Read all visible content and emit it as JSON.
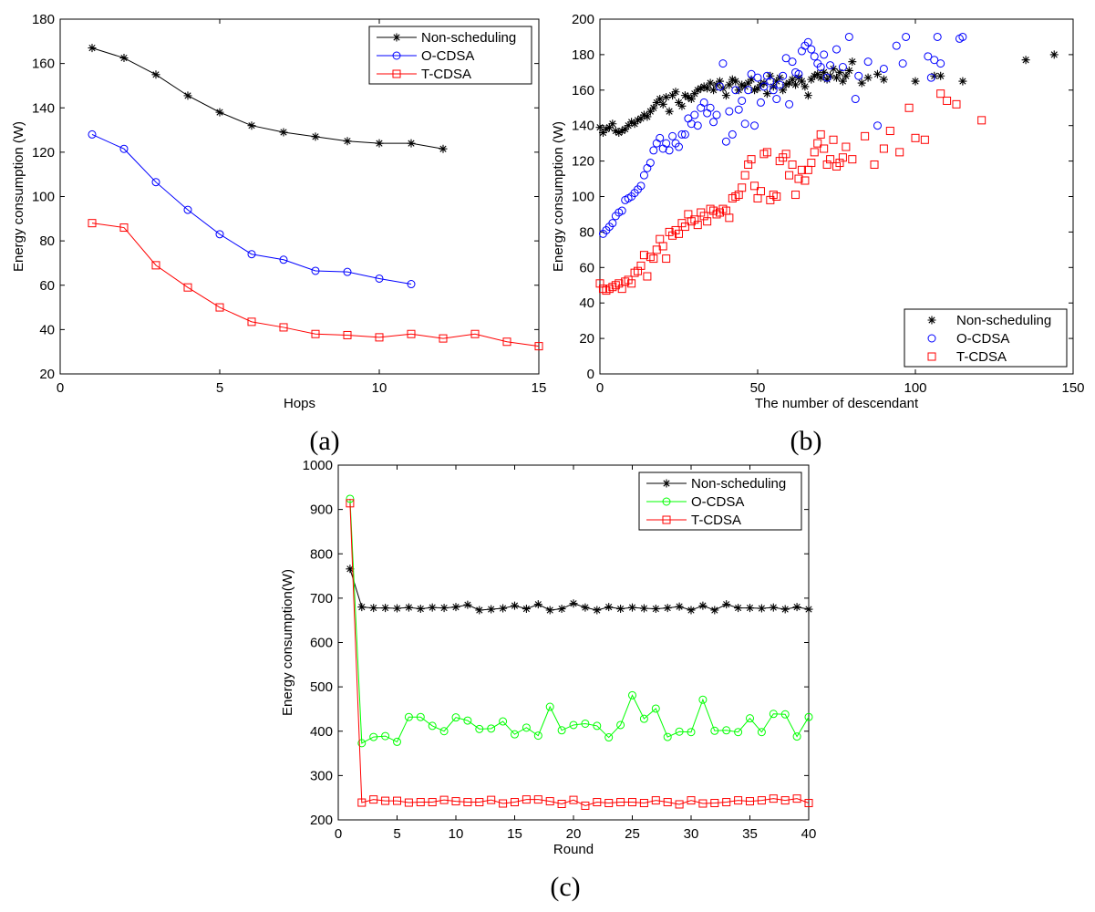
{
  "colors": {
    "non_scheduling": "#000000",
    "o_cdsa_a": "#0000ff",
    "o_cdsa_b": "#0000ff",
    "o_cdsa_c": "#00ff00",
    "t_cdsa": "#ff0000"
  },
  "chart_data": [
    {
      "id": "a",
      "panel_label": "(a)",
      "type": "line",
      "xlabel": "Hops",
      "ylabel": "Energy consumption (W)",
      "xlim": [
        0,
        15
      ],
      "ylim": [
        20,
        180
      ],
      "xticks": [
        0,
        5,
        10,
        15
      ],
      "yticks": [
        20,
        40,
        60,
        80,
        100,
        120,
        140,
        160,
        180
      ],
      "legend_position": "top-right",
      "series": [
        {
          "name": "Non-scheduling",
          "marker": "star",
          "color": "#000000",
          "x": [
            1,
            2,
            3,
            4,
            5,
            6,
            7,
            8,
            9,
            10,
            11,
            12
          ],
          "values": [
            167,
            162.5,
            155,
            145.5,
            138,
            132,
            129,
            127,
            125,
            124,
            124,
            121.5
          ]
        },
        {
          "name": "O-CDSA",
          "marker": "circle",
          "color": "#0000ff",
          "x": [
            1,
            2,
            3,
            4,
            5,
            6,
            7,
            8,
            9,
            10,
            11
          ],
          "values": [
            128,
            121.5,
            106.5,
            94,
            83,
            74,
            71.5,
            66.5,
            66,
            63,
            60.5
          ]
        },
        {
          "name": "T-CDSA",
          "marker": "square",
          "color": "#ff0000",
          "x": [
            1,
            2,
            3,
            4,
            5,
            6,
            7,
            8,
            9,
            10,
            11,
            12,
            13,
            14,
            15
          ],
          "values": [
            88,
            86,
            69,
            59,
            50,
            43.5,
            41,
            38,
            37.5,
            36.5,
            38,
            36,
            38,
            34.5,
            32.5
          ]
        }
      ]
    },
    {
      "id": "b",
      "panel_label": "(b)",
      "type": "scatter",
      "xlabel": "The number of descendant",
      "ylabel": "Energy consumption (W)",
      "xlim": [
        0,
        150
      ],
      "ylim": [
        0,
        200
      ],
      "xticks": [
        0,
        50,
        100,
        150
      ],
      "yticks": [
        0,
        20,
        40,
        60,
        80,
        100,
        120,
        140,
        160,
        180,
        200
      ],
      "legend_position": "bottom-right",
      "series": [
        {
          "name": "Non-scheduling",
          "marker": "star",
          "color": "#000000",
          "x": [
            0,
            1,
            2,
            3,
            4,
            5,
            6,
            7,
            8,
            9,
            10,
            11,
            12,
            13,
            14,
            15,
            16,
            17,
            18,
            19,
            20,
            21,
            22,
            23,
            24,
            25,
            26,
            27,
            28,
            29,
            30,
            31,
            32,
            33,
            34,
            35,
            36,
            37,
            38,
            39,
            40,
            41,
            42,
            43,
            44,
            45,
            46,
            47,
            48,
            49,
            50,
            51,
            52,
            53,
            54,
            55,
            56,
            57,
            58,
            59,
            60,
            61,
            62,
            63,
            64,
            65,
            66,
            67,
            68,
            69,
            70,
            71,
            72,
            73,
            74,
            75,
            76,
            77,
            78,
            79,
            80,
            83,
            85,
            88,
            90,
            100,
            106,
            108,
            115,
            135,
            144
          ],
          "values": [
            139,
            136,
            138,
            139,
            141,
            137,
            136,
            137,
            138,
            140,
            142,
            141,
            143,
            144,
            146,
            145,
            148,
            150,
            153,
            155,
            152,
            156,
            148,
            157,
            159,
            153,
            151,
            157,
            156,
            155,
            158,
            160,
            161,
            162,
            161,
            164,
            160,
            163,
            165,
            161,
            157,
            163,
            166,
            165,
            160,
            163,
            162,
            164,
            166,
            160,
            161,
            163,
            164,
            158,
            168,
            162,
            165,
            167,
            160,
            163,
            164,
            166,
            163,
            167,
            165,
            162,
            157,
            166,
            168,
            169,
            167,
            170,
            166,
            168,
            172,
            167,
            170,
            165,
            168,
            171,
            176,
            164,
            167,
            169,
            166,
            165,
            168,
            168,
            165,
            177,
            180
          ]
        },
        {
          "name": "O-CDSA",
          "marker": "circle",
          "color": "#0000ff",
          "x": [
            1,
            2,
            3,
            4,
            5,
            6,
            7,
            8,
            9,
            10,
            11,
            12,
            13,
            14,
            15,
            16,
            17,
            18,
            19,
            20,
            21,
            22,
            23,
            24,
            25,
            26,
            27,
            28,
            29,
            30,
            31,
            32,
            33,
            34,
            35,
            36,
            37,
            38,
            39,
            40,
            41,
            42,
            43,
            44,
            45,
            46,
            47,
            48,
            49,
            50,
            51,
            52,
            53,
            54,
            55,
            56,
            57,
            58,
            59,
            60,
            61,
            62,
            63,
            64,
            65,
            66,
            67,
            68,
            69,
            70,
            71,
            72,
            73,
            75,
            77,
            79,
            81,
            82,
            85,
            88,
            90,
            94,
            96,
            97,
            104,
            105,
            106,
            107,
            108,
            114,
            115
          ],
          "values": [
            79,
            81,
            83,
            85,
            89,
            91,
            92,
            98,
            99,
            100,
            102,
            104,
            106,
            112,
            116,
            119,
            126,
            130,
            133,
            127,
            130,
            126,
            134,
            130,
            128,
            135,
            135,
            144,
            141,
            146,
            140,
            150,
            153,
            147,
            150,
            142,
            146,
            162,
            175,
            131,
            148,
            135,
            160,
            149,
            154,
            141,
            160,
            169,
            140,
            167,
            153,
            162,
            168,
            165,
            160,
            155,
            163,
            168,
            178,
            152,
            176,
            170,
            169,
            182,
            185,
            187,
            183,
            179,
            175,
            173,
            180,
            167,
            174,
            183,
            173,
            190,
            155,
            168,
            176,
            140,
            172,
            185,
            175,
            190,
            179,
            167,
            177,
            190,
            175,
            189,
            190
          ]
        },
        {
          "name": "T-CDSA",
          "marker": "square",
          "color": "#ff0000",
          "x": [
            0,
            1,
            2,
            3,
            4,
            5,
            6,
            7,
            8,
            9,
            10,
            11,
            12,
            13,
            14,
            15,
            16,
            17,
            18,
            19,
            20,
            21,
            22,
            23,
            24,
            25,
            26,
            27,
            28,
            29,
            30,
            31,
            32,
            33,
            34,
            35,
            36,
            37,
            38,
            39,
            40,
            41,
            42,
            43,
            44,
            45,
            46,
            47,
            48,
            49,
            50,
            51,
            52,
            53,
            54,
            55,
            56,
            57,
            58,
            59,
            60,
            61,
            62,
            63,
            64,
            65,
            66,
            67,
            68,
            69,
            70,
            71,
            72,
            73,
            74,
            75,
            76,
            77,
            78,
            80,
            84,
            87,
            90,
            92,
            95,
            98,
            100,
            103,
            108,
            110,
            113,
            121
          ],
          "values": [
            51,
            48,
            47,
            48,
            49,
            50,
            51,
            48,
            52,
            53,
            51,
            57,
            58,
            61,
            67,
            55,
            66,
            65,
            70,
            76,
            72,
            65,
            80,
            78,
            81,
            79,
            85,
            83,
            90,
            86,
            87,
            84,
            91,
            89,
            86,
            93,
            92,
            90,
            91,
            93,
            92,
            88,
            99,
            100,
            101,
            105,
            112,
            118,
            121,
            106,
            99,
            103,
            124,
            125,
            98,
            101,
            100,
            120,
            122,
            124,
            112,
            118,
            101,
            110,
            115,
            109,
            115,
            119,
            125,
            130,
            135,
            127,
            118,
            121,
            132,
            117,
            119,
            122,
            128,
            121,
            134,
            118,
            127,
            137,
            125,
            150,
            133,
            132,
            158,
            154,
            152,
            143
          ]
        }
      ]
    },
    {
      "id": "c",
      "panel_label": "(c)",
      "type": "line",
      "xlabel": "Round",
      "ylabel": "Energy consumption(W)",
      "xlim": [
        0,
        40
      ],
      "ylim": [
        200,
        1000
      ],
      "xticks": [
        0,
        5,
        10,
        15,
        20,
        25,
        30,
        35,
        40
      ],
      "yticks": [
        200,
        300,
        400,
        500,
        600,
        700,
        800,
        900,
        1000
      ],
      "legend_position": "top-right",
      "series": [
        {
          "name": "Non-scheduling",
          "marker": "star",
          "color": "#000000",
          "x": [
            1,
            2,
            3,
            4,
            5,
            6,
            7,
            8,
            9,
            10,
            11,
            12,
            13,
            14,
            15,
            16,
            17,
            18,
            19,
            20,
            21,
            22,
            23,
            24,
            25,
            26,
            27,
            28,
            29,
            30,
            31,
            32,
            33,
            34,
            35,
            36,
            37,
            38,
            39,
            40
          ],
          "values": [
            766,
            680,
            678,
            678,
            677,
            679,
            676,
            679,
            678,
            680,
            685,
            673,
            675,
            677,
            683,
            676,
            686,
            673,
            676,
            688,
            679,
            673,
            680,
            676,
            679,
            677,
            676,
            678,
            681,
            673,
            683,
            673,
            686,
            678,
            678,
            677,
            679,
            675,
            680,
            675
          ]
        },
        {
          "name": "O-CDSA",
          "marker": "circle",
          "color": "#00ff00",
          "x": [
            1,
            2,
            3,
            4,
            5,
            6,
            7,
            8,
            9,
            10,
            11,
            12,
            13,
            14,
            15,
            16,
            17,
            18,
            19,
            20,
            21,
            22,
            23,
            24,
            25,
            26,
            27,
            28,
            29,
            30,
            31,
            32,
            33,
            34,
            35,
            36,
            37,
            38,
            39,
            40
          ],
          "values": [
            924,
            373,
            387,
            389,
            376,
            432,
            432,
            412,
            400,
            431,
            424,
            405,
            406,
            422,
            393,
            408,
            390,
            455,
            402,
            414,
            417,
            412,
            386,
            414,
            481,
            428,
            451,
            387,
            399,
            398,
            471,
            401,
            402,
            398,
            429,
            398,
            439,
            438,
            388,
            432
          ]
        },
        {
          "name": "T-CDSA",
          "marker": "square",
          "color": "#ff0000",
          "x": [
            1,
            2,
            3,
            4,
            5,
            6,
            7,
            8,
            9,
            10,
            11,
            12,
            13,
            14,
            15,
            16,
            17,
            18,
            19,
            20,
            21,
            22,
            23,
            24,
            25,
            26,
            27,
            28,
            29,
            30,
            31,
            32,
            33,
            34,
            35,
            36,
            37,
            38,
            39,
            40
          ],
          "values": [
            914,
            239,
            246,
            243,
            243,
            239,
            240,
            240,
            245,
            242,
            240,
            240,
            245,
            237,
            240,
            246,
            246,
            242,
            236,
            245,
            232,
            240,
            238,
            240,
            240,
            238,
            244,
            240,
            235,
            244,
            237,
            238,
            240,
            244,
            242,
            244,
            248,
            244,
            248,
            238
          ]
        }
      ]
    }
  ]
}
